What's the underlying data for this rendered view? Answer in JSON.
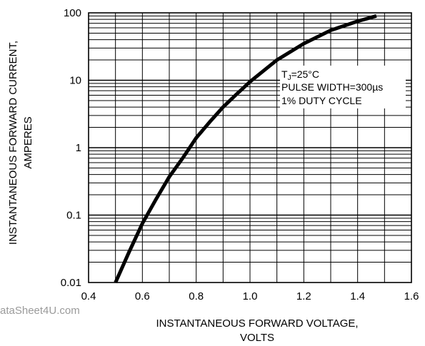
{
  "chart_data": {
    "type": "line",
    "title": "",
    "xlabel_lines": [
      "INSTANTANEOUS FORWARD VOLTAGE,",
      "VOLTS"
    ],
    "ylabel_lines": [
      "INSTANTANEOUS FORWARD CURRENT,",
      "AMPERES"
    ],
    "xlim": [
      0.4,
      1.6
    ],
    "ylim": [
      0.01,
      100
    ],
    "yscale": "log",
    "grid": true,
    "x_ticks": [
      0.4,
      0.6,
      0.8,
      1.0,
      1.2,
      1.4,
      1.6
    ],
    "x_tick_labels": [
      "0.4",
      "0.6",
      "0.8",
      "1.0",
      "1.2",
      "1.4",
      "1.6"
    ],
    "y_ticks": [
      0.01,
      0.1,
      1,
      10,
      100
    ],
    "y_tick_labels": [
      "0.01",
      "0.1",
      "1",
      "10",
      "100"
    ],
    "annotation": {
      "condition_main": "T",
      "condition_sub": "J",
      "condition_rest": "=25°C",
      "pulse_width": "PULSE WIDTH=300µs",
      "duty_cycle": "1% DUTY CYCLE"
    },
    "series": [
      {
        "x": [
          0.5,
          0.55,
          0.6,
          0.65,
          0.7,
          0.75,
          0.8,
          0.85,
          0.9,
          0.95,
          1.0,
          1.1,
          1.2,
          1.3,
          1.4,
          1.47
        ],
        "y": [
          0.01,
          0.028,
          0.075,
          0.17,
          0.37,
          0.7,
          1.4,
          2.4,
          4.0,
          6.2,
          9.5,
          20,
          35,
          55,
          75,
          90
        ],
        "color": "#000000"
      }
    ]
  },
  "watermark": "ataSheet4U.com"
}
